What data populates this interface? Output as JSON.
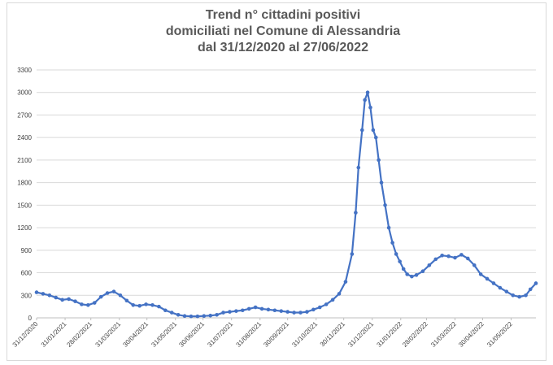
{
  "chart_data": {
    "type": "line",
    "title": [
      "Trend n° cittadini positivi",
      "domiciliati nel Comune di Alessandria",
      "dal 31/12/2020 al 27/06/2022"
    ],
    "xlabel": "",
    "ylabel": "",
    "ylim": [
      0,
      3300
    ],
    "yticks": [
      0,
      300,
      600,
      900,
      1200,
      1500,
      1800,
      2100,
      2400,
      2700,
      3000,
      3300
    ],
    "xlim": [
      "2020-12-31",
      "2022-06-27"
    ],
    "xticks": [
      "31/12/2020",
      "31/01/2021",
      "28/02/2021",
      "31/03/2021",
      "30/04/2021",
      "31/05/2021",
      "30/06/2021",
      "31/07/2021",
      "31/08/2021",
      "30/09/2021",
      "31/10/2021",
      "30/11/2021",
      "31/12/2021",
      "31/01/2022",
      "28/02/2022",
      "31/03/2022",
      "30/04/2022",
      "31/05/2022"
    ],
    "grid": true,
    "line_color": "#4472c4",
    "series": [
      {
        "x": [
          "2020-12-31",
          "2021-01-07",
          "2021-01-14",
          "2021-01-21",
          "2021-01-28",
          "2021-02-04",
          "2021-02-11",
          "2021-02-18",
          "2021-02-25",
          "2021-03-04",
          "2021-03-11",
          "2021-03-18",
          "2021-03-25",
          "2021-04-01",
          "2021-04-08",
          "2021-04-15",
          "2021-04-22",
          "2021-04-29",
          "2021-05-06",
          "2021-05-13",
          "2021-05-20",
          "2021-05-27",
          "2021-06-03",
          "2021-06-10",
          "2021-06-17",
          "2021-06-24",
          "2021-07-01",
          "2021-07-08",
          "2021-07-15",
          "2021-07-22",
          "2021-07-29",
          "2021-08-05",
          "2021-08-12",
          "2021-08-19",
          "2021-08-26",
          "2021-09-02",
          "2021-09-09",
          "2021-09-16",
          "2021-09-23",
          "2021-09-30",
          "2021-10-07",
          "2021-10-14",
          "2021-10-21",
          "2021-10-28",
          "2021-11-04",
          "2021-11-11",
          "2021-11-18",
          "2021-11-25",
          "2021-12-02",
          "2021-12-09",
          "2021-12-13",
          "2021-12-16",
          "2021-12-20",
          "2021-12-23",
          "2021-12-26",
          "2021-12-29",
          "2022-01-01",
          "2022-01-04",
          "2022-01-07",
          "2022-01-10",
          "2022-01-14",
          "2022-01-18",
          "2022-01-22",
          "2022-01-26",
          "2022-01-30",
          "2022-02-03",
          "2022-02-07",
          "2022-02-12",
          "2022-02-17",
          "2022-02-24",
          "2022-03-03",
          "2022-03-10",
          "2022-03-17",
          "2022-03-24",
          "2022-03-31",
          "2022-04-07",
          "2022-04-14",
          "2022-04-21",
          "2022-04-28",
          "2022-05-05",
          "2022-05-12",
          "2022-05-19",
          "2022-05-26",
          "2022-06-02",
          "2022-06-09",
          "2022-06-16",
          "2022-06-21",
          "2022-06-27"
        ],
        "values": [
          340,
          320,
          300,
          270,
          240,
          250,
          220,
          180,
          170,
          200,
          280,
          330,
          350,
          300,
          230,
          170,
          160,
          180,
          170,
          150,
          100,
          70,
          40,
          25,
          20,
          20,
          25,
          30,
          40,
          70,
          80,
          90,
          100,
          120,
          140,
          120,
          110,
          100,
          90,
          80,
          70,
          70,
          80,
          110,
          140,
          180,
          240,
          320,
          480,
          850,
          1400,
          2000,
          2500,
          2900,
          3000,
          2800,
          2500,
          2400,
          2100,
          1800,
          1500,
          1200,
          1000,
          850,
          750,
          650,
          580,
          550,
          570,
          620,
          700,
          780,
          830,
          820,
          800,
          840,
          790,
          700,
          580,
          520,
          460,
          400,
          350,
          300,
          280,
          300,
          380,
          460
        ]
      }
    ]
  }
}
